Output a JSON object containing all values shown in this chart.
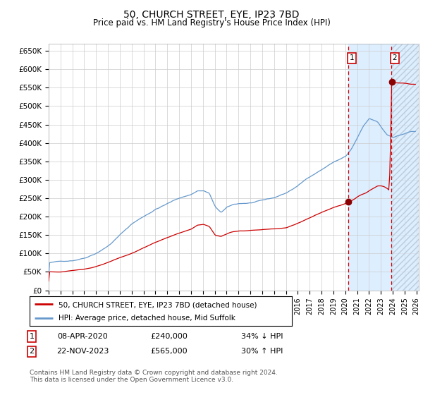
{
  "title": "50, CHURCH STREET, EYE, IP23 7BD",
  "subtitle": "Price paid vs. HM Land Registry's House Price Index (HPI)",
  "legend_red": "50, CHURCH STREET, EYE, IP23 7BD (detached house)",
  "legend_blue": "HPI: Average price, detached house, Mid Suffolk",
  "transaction1_date": "08-APR-2020",
  "transaction1_price": "£240,000",
  "transaction1_hpi": "34% ↓ HPI",
  "transaction2_date": "22-NOV-2023",
  "transaction2_price": "£565,000",
  "transaction2_hpi": "30% ↑ HPI",
  "footer": "Contains HM Land Registry data © Crown copyright and database right 2024.\nThis data is licensed under the Open Government Licence v3.0.",
  "ylim": [
    0,
    670000
  ],
  "yticks": [
    0,
    50000,
    100000,
    150000,
    200000,
    250000,
    300000,
    350000,
    400000,
    450000,
    500000,
    550000,
    600000,
    650000
  ],
  "ytick_labels": [
    "£0",
    "£50K",
    "£100K",
    "£150K",
    "£200K",
    "£250K",
    "£300K",
    "£350K",
    "£400K",
    "£450K",
    "£500K",
    "£550K",
    "£600K",
    "£650K"
  ],
  "transaction1_year": 2020.25,
  "transaction2_year": 2023.88,
  "transaction1_value": 240000,
  "transaction2_value": 565000,
  "red_color": "#cc0000",
  "dark_red": "#8b0000",
  "blue_color": "#6699cc",
  "bg_color": "#ffffff",
  "grid_color": "#cccccc",
  "shade_color": "#ddeeff",
  "xlim_start": 1995,
  "xlim_end": 2026.2
}
